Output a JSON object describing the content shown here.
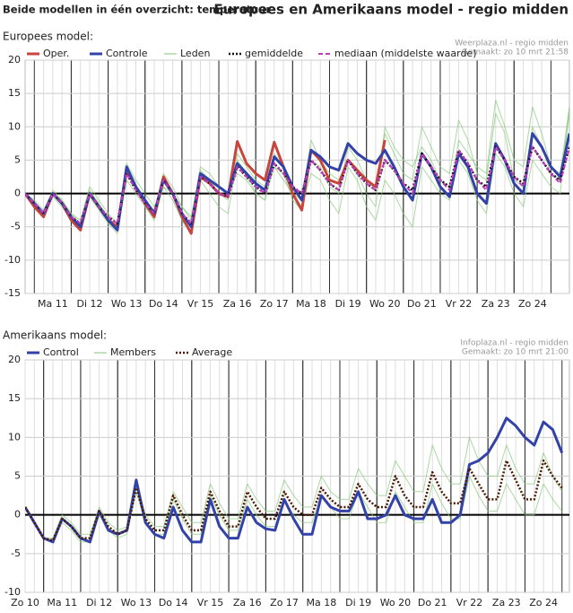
{
  "header": {
    "left": "Beide modellen in één overzicht: temperatuur",
    "right": "Europees en Amerikaans model - regio midden"
  },
  "chart_data": [
    {
      "type": "line",
      "title": "Europees model:",
      "source": [
        "Weerplaza.nl - regio midden",
        "Gemaakt: zo 10 mrt 21:58"
      ],
      "x": [
        0.75,
        1,
        1.25,
        1.5,
        1.75,
        2,
        2.25,
        2.5,
        2.75,
        3,
        3.25,
        3.5,
        3.75,
        4,
        4.25,
        4.5,
        4.75,
        5,
        5.25,
        5.5,
        5.75,
        6,
        6.25,
        6.5,
        6.75,
        7,
        7.25,
        7.5,
        7.75,
        8,
        8.25,
        8.5,
        8.75,
        9,
        9.25,
        9.5,
        9.75,
        10,
        10.25,
        10.5,
        10.75,
        11,
        11.25,
        11.5,
        11.75,
        12,
        12.25,
        12.5,
        12.75,
        13,
        13.25,
        13.5,
        13.75,
        14,
        14.25,
        14.5,
        14.75,
        15,
        15.25,
        15.5
      ],
      "xlim": [
        0.75,
        15.5
      ],
      "xticks": [
        {
          "value": 1.5,
          "label": "Ma 11"
        },
        {
          "value": 2.5,
          "label": "Di 12"
        },
        {
          "value": 3.5,
          "label": "Wo 13"
        },
        {
          "value": 4.5,
          "label": "Do 14"
        },
        {
          "value": 5.5,
          "label": "Vr 15"
        },
        {
          "value": 6.5,
          "label": "Za 16"
        },
        {
          "value": 7.5,
          "label": "Zo 17"
        },
        {
          "value": 8.5,
          "label": "Ma 18"
        },
        {
          "value": 9.5,
          "label": "Di 19"
        },
        {
          "value": 10.5,
          "label": "Wo 20"
        },
        {
          "value": 11.5,
          "label": "Do 21"
        },
        {
          "value": 12.5,
          "label": "Vr 22"
        },
        {
          "value": 13.5,
          "label": "Za 23"
        },
        {
          "value": 14.5,
          "label": "Zo 24"
        }
      ],
      "ylim": [
        -15,
        20
      ],
      "yticks": [
        -15,
        -10,
        -5,
        0,
        5,
        10,
        15,
        20
      ],
      "grid": true,
      "series": [
        {
          "name": "Oper.",
          "color": "#c8453c",
          "width": 3,
          "values": [
            0,
            -2,
            -3.5,
            0,
            -1.5,
            -4,
            -5.5,
            0,
            -2,
            -4,
            -5,
            3.5,
            1,
            -1.5,
            -3.5,
            2.5,
            0,
            -3.5,
            -6,
            2.5,
            1.5,
            0,
            -0.5,
            7.8,
            4.5,
            3,
            2,
            7.7,
            4,
            0,
            -2.5,
            6.5,
            5,
            2,
            1.5,
            5,
            3.5,
            2,
            1,
            8,
            null,
            null,
            null,
            null,
            null,
            null,
            null,
            null,
            null,
            null,
            null,
            null,
            null,
            null,
            null,
            null,
            null,
            null,
            null,
            null
          ]
        },
        {
          "name": "Controle",
          "color": "#3342a8",
          "width": 3,
          "values": [
            0,
            -1.5,
            -3,
            0,
            -1.5,
            -3.5,
            -5,
            0,
            -2,
            -4,
            -5.5,
            4,
            1,
            -1,
            -3,
            2,
            0,
            -3,
            -5,
            3,
            2,
            1,
            0,
            4.5,
            3,
            1.5,
            0.5,
            5.5,
            4,
            1,
            -1,
            6.5,
            5.5,
            4,
            3.5,
            7.5,
            6,
            5,
            4.5,
            6.5,
            4,
            1,
            -1,
            6,
            4,
            1,
            -0.5,
            6,
            4,
            0,
            -1.5,
            7.5,
            5,
            1.5,
            0,
            9,
            7,
            4,
            2.5,
            9
          ]
        },
        {
          "name": "Leden",
          "color": "#86c978",
          "width": 1,
          "members": [
            [
              0,
              -1,
              -2.5,
              0.5,
              -1,
              -3,
              -4.5,
              0.5,
              -1.5,
              -3.5,
              -5,
              3,
              1,
              -1,
              -2.5,
              3,
              1,
              -2,
              -4,
              4,
              3,
              1,
              0,
              3,
              2,
              0,
              -1,
              4,
              3,
              -1,
              -2.5,
              5,
              4,
              1,
              0,
              7,
              5,
              2,
              1,
              9,
              6,
              3,
              2,
              10,
              7,
              4,
              3,
              11,
              8,
              3,
              2,
              12,
              9,
              2,
              1,
              10,
              7,
              3,
              2,
              12
            ],
            [
              0,
              -2,
              -3.5,
              -0.5,
              -2,
              -4,
              -5.5,
              -0.5,
              -2.5,
              -4.5,
              -6,
              2,
              0,
              -2,
              -4,
              1,
              -1,
              -4,
              -6,
              2,
              0,
              -2,
              -3,
              5,
              3,
              0,
              -1,
              6,
              4,
              0,
              -2,
              3,
              2,
              -1,
              -3,
              4,
              2,
              -2,
              -4,
              2,
              0,
              -3,
              -5,
              4,
              2,
              0,
              -1,
              8,
              6,
              4,
              3,
              14,
              10,
              5,
              4,
              13,
              9,
              4,
              3,
              13
            ],
            [
              0,
              -1.5,
              -3,
              0,
              -1,
              -3,
              -4,
              1,
              -1,
              -3,
              -4.5,
              4.5,
              2,
              0,
              -2,
              1,
              0,
              -2,
              -3.5,
              3.5,
              2,
              0,
              -1,
              6,
              4,
              2,
              1,
              4,
              2,
              0,
              -1,
              8,
              5,
              3,
              2,
              5,
              3,
              0,
              -2,
              10,
              7,
              5,
              4,
              7,
              5,
              2,
              1,
              5,
              3,
              -1,
              -3,
              6,
              4,
              0,
              -2,
              5,
              3,
              1,
              0,
              13
            ]
          ]
        },
        {
          "name": "gemiddelde",
          "color": "#111111",
          "width": 2.5,
          "dash": "2,2",
          "values": [
            0,
            -1.5,
            -3,
            0,
            -1.5,
            -3.5,
            -4.5,
            0,
            -2,
            -3.5,
            -4.5,
            3,
            0.5,
            -1.5,
            -3,
            2,
            0,
            -3,
            -4.5,
            2.5,
            1.5,
            0,
            -0.5,
            4,
            2.5,
            1,
            0,
            4.5,
            3,
            1,
            0,
            5,
            3.5,
            1.5,
            0.5,
            5,
            3,
            1.5,
            0.5,
            5,
            3.5,
            1.5,
            0.5,
            6,
            4,
            2,
            1,
            6.5,
            4.5,
            2,
            1,
            7,
            5,
            2.5,
            1.5,
            7,
            5,
            3,
            2,
            7
          ]
        },
        {
          "name": "mediaan (middelste waarde)",
          "color": "#c03cc0",
          "width": 2,
          "dash": "5,3",
          "values": [
            0,
            -1.5,
            -3,
            0,
            -1.5,
            -3.5,
            -4.5,
            0,
            -2,
            -3.5,
            -4.5,
            3,
            0.5,
            -1.5,
            -3,
            2,
            0,
            -3,
            -4.5,
            2.5,
            1.5,
            0,
            -0.5,
            4,
            2.5,
            1,
            0,
            4.5,
            3,
            1,
            0,
            5,
            3.5,
            1.5,
            0.5,
            5,
            3,
            1.5,
            0.5,
            5,
            3.5,
            1.5,
            0,
            6,
            4,
            2,
            0.5,
            6.5,
            4.5,
            2,
            0.5,
            7,
            5,
            2.5,
            1,
            7,
            5,
            3,
            1.5,
            7
          ]
        }
      ]
    },
    {
      "type": "line",
      "title": "Amerikaans model:",
      "source": [
        "Infoplaza.nl - regio midden",
        "Gemaakt: zo 10 mrt 21:00"
      ],
      "x": [
        0.5,
        0.75,
        1,
        1.25,
        1.5,
        1.75,
        2,
        2.25,
        2.5,
        2.75,
        3,
        3.25,
        3.5,
        3.75,
        4,
        4.25,
        4.5,
        4.75,
        5,
        5.25,
        5.5,
        5.75,
        6,
        6.25,
        6.5,
        6.75,
        7,
        7.25,
        7.5,
        7.75,
        8,
        8.25,
        8.5,
        8.75,
        9,
        9.25,
        9.5,
        9.75,
        10,
        10.25,
        10.5,
        10.75,
        11,
        11.25,
        11.5,
        11.75,
        12,
        12.25,
        12.5,
        12.75,
        13,
        13.25,
        13.5,
        13.75,
        14,
        14.25,
        14.5,
        14.75,
        15
      ],
      "xlim": [
        0.5,
        15.2
      ],
      "xticks": [
        {
          "value": 0.5,
          "label": "Zo 10"
        },
        {
          "value": 1.5,
          "label": "Ma 11"
        },
        {
          "value": 2.5,
          "label": "Di 12"
        },
        {
          "value": 3.5,
          "label": "Wo 13"
        },
        {
          "value": 4.5,
          "label": "Do 14"
        },
        {
          "value": 5.5,
          "label": "Vr 15"
        },
        {
          "value": 6.5,
          "label": "Za 16"
        },
        {
          "value": 7.5,
          "label": "Zo 17"
        },
        {
          "value": 8.5,
          "label": "Ma 18"
        },
        {
          "value": 9.5,
          "label": "Di 19"
        },
        {
          "value": 10.5,
          "label": "Wo 20"
        },
        {
          "value": 11.5,
          "label": "Do 21"
        },
        {
          "value": 12.5,
          "label": "Vr 22"
        },
        {
          "value": 13.5,
          "label": "Za 23"
        },
        {
          "value": 14.5,
          "label": "Zo 24"
        }
      ],
      "ylim": [
        -10,
        20
      ],
      "yticks": [
        -10,
        -5,
        0,
        5,
        10,
        15,
        20
      ],
      "grid": true,
      "series": [
        {
          "name": "Control",
          "color": "#3342a8",
          "width": 3,
          "values": [
            1,
            -1,
            -3,
            -3.5,
            -0.5,
            -1.5,
            -3,
            -3.5,
            0.5,
            -2,
            -2.5,
            -2,
            4.5,
            -1,
            -2.5,
            -3,
            1,
            -2,
            -3.5,
            -3.5,
            2,
            -1.5,
            -3,
            -3,
            1,
            -1,
            -1.8,
            -2,
            2,
            -0.5,
            -2.5,
            -2.5,
            2.5,
            1,
            0.5,
            0.5,
            3,
            -0.5,
            -0.5,
            0,
            2.5,
            0,
            -0.5,
            -0.5,
            2,
            -1,
            -1,
            0,
            6.5,
            7,
            8,
            10,
            12.5,
            11.5,
            10,
            9,
            12,
            11,
            8
          ]
        },
        {
          "name": "Members",
          "color": "#86c978",
          "width": 1,
          "members": [
            [
              1,
              -1,
              -3,
              -3,
              0,
              -1,
              -2.5,
              -2.5,
              1,
              -1,
              -2,
              -1.5,
              4,
              0,
              -1.5,
              -1.5,
              3,
              1,
              -1,
              -1,
              4,
              1.5,
              -0.5,
              -0.5,
              4,
              2,
              0.5,
              0.5,
              4.5,
              2.5,
              1,
              1,
              5,
              3,
              2,
              2,
              6,
              4,
              2.5,
              2.5,
              7,
              5,
              3,
              3,
              9,
              6,
              4,
              4,
              10,
              7,
              5,
              5,
              9,
              6,
              4,
              4,
              8,
              5,
              3
            ],
            [
              1,
              -1,
              -3,
              -3.5,
              -1,
              -2,
              -3.5,
              -3.5,
              0,
              -2,
              -3,
              -2.5,
              3,
              -1,
              -2.5,
              -2.5,
              2,
              -0.5,
              -2.5,
              -2.5,
              2.5,
              0,
              -2,
              -2,
              2,
              0,
              -1.5,
              -1.5,
              2,
              0,
              -1,
              -1,
              2.5,
              1,
              -0.5,
              -0.5,
              3,
              1,
              -1,
              -1,
              3,
              1,
              -1,
              -1,
              4,
              1.5,
              -0.5,
              -0.5,
              5,
              2.5,
              0.5,
              0.5,
              4,
              2,
              0,
              0,
              4,
              2,
              0.5
            ]
          ]
        },
        {
          "name": "Average",
          "color": "#4a1800",
          "width": 2.5,
          "dash": "2,2",
          "values": [
            1,
            -1,
            -3,
            -3.3,
            -0.5,
            -1.5,
            -3,
            -3,
            0.5,
            -1.5,
            -2.5,
            -2,
            3.5,
            -0.5,
            -2,
            -2,
            2.5,
            0,
            -2,
            -2,
            3,
            0.5,
            -1.5,
            -1.5,
            3,
            1,
            -0.5,
            -0.5,
            3,
            1,
            0,
            0,
            3.5,
            2,
            1,
            1,
            4,
            2,
            1,
            1,
            5,
            2.5,
            1,
            1,
            5.5,
            3,
            1.5,
            1.5,
            6,
            4,
            2,
            2,
            7,
            4.5,
            2,
            2,
            7,
            5,
            3.5
          ]
        }
      ]
    }
  ]
}
